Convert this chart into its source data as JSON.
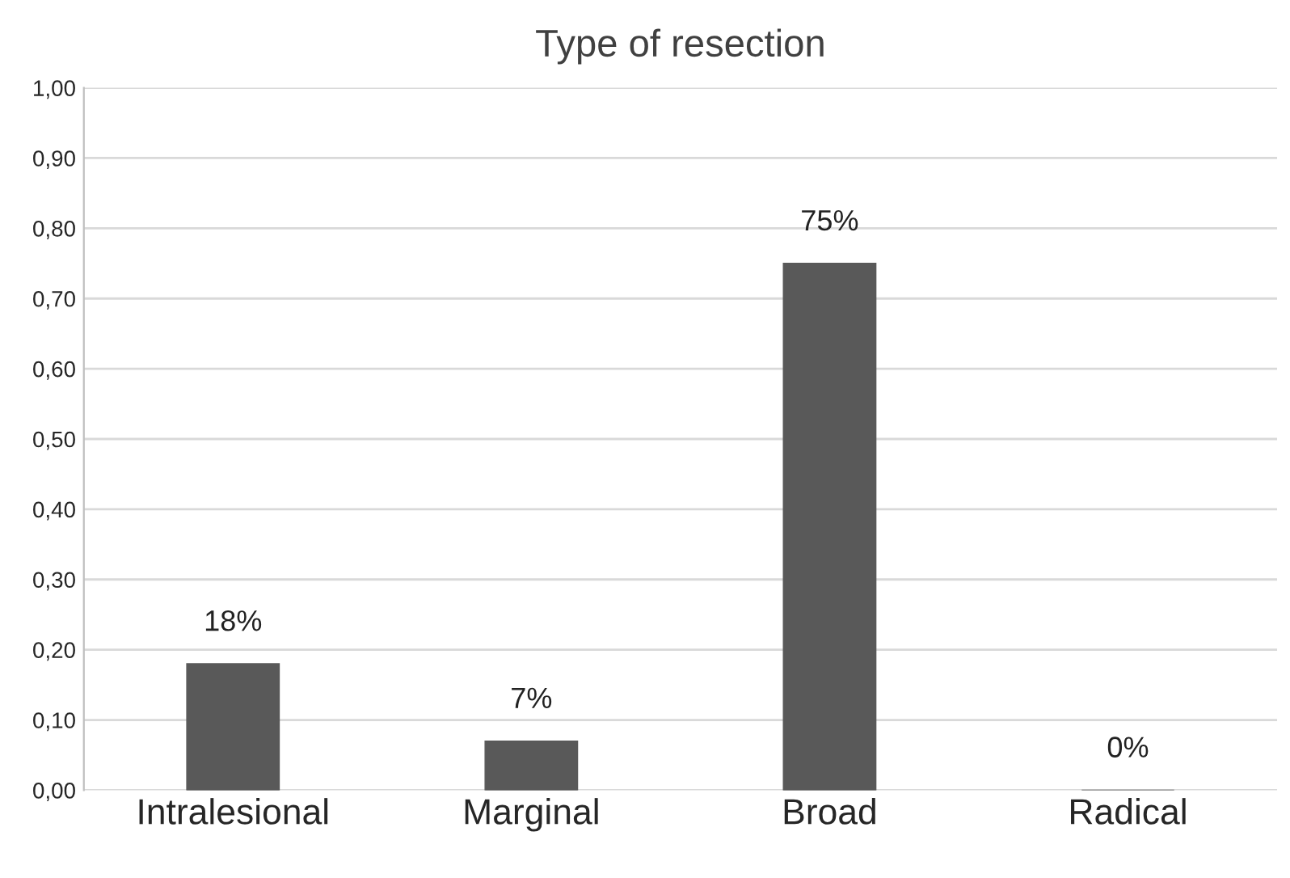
{
  "chart_data": {
    "type": "bar",
    "title": "Type of resection",
    "categories": [
      "Intralesional",
      "Marginal",
      "Broad",
      "Radical"
    ],
    "values": [
      0.18,
      0.07,
      0.75,
      0.0
    ],
    "value_labels": [
      "18%",
      "7%",
      "75%",
      "0%"
    ],
    "color": "#595959",
    "ylim": [
      0,
      1.0
    ],
    "yticks": [
      {
        "value": 0,
        "label": "0,00"
      },
      {
        "value": 0.1,
        "label": "0,10"
      },
      {
        "value": 0.2,
        "label": "0,20"
      },
      {
        "value": 0.3,
        "label": "0,30"
      },
      {
        "value": 0.4,
        "label": "0,40"
      },
      {
        "value": 0.5,
        "label": "0,50"
      },
      {
        "value": 0.6,
        "label": "0,60"
      },
      {
        "value": 0.7,
        "label": "0,70"
      },
      {
        "value": 0.8,
        "label": "0,80"
      },
      {
        "value": 0.9,
        "label": "0,90"
      },
      {
        "value": 1.0,
        "label": "1,00"
      }
    ],
    "grid": "y",
    "legend": false
  }
}
